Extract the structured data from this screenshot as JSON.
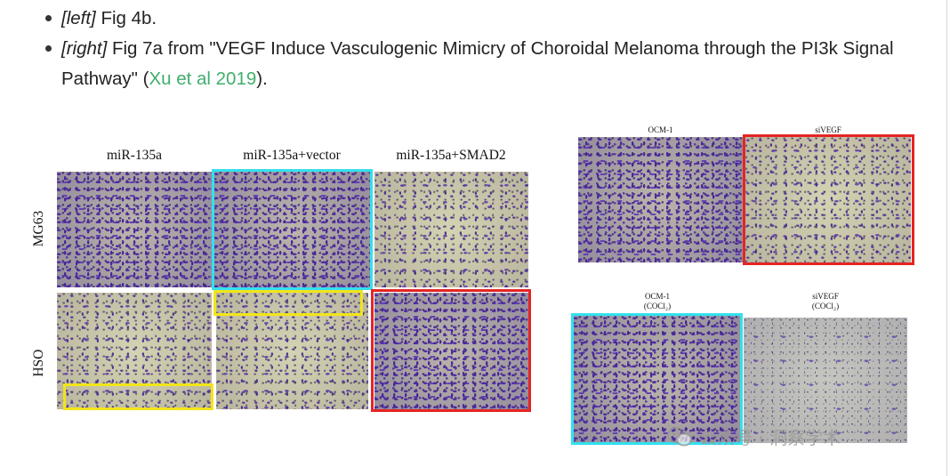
{
  "bullets": [
    {
      "tag": "[left]",
      "text": " Fig 4b."
    },
    {
      "tag": "[right]",
      "text_before": " Fig 7a from \"VEGF Induce Vasculogenic Mimicry of Choroidal Melanoma through the PI3k Signal Pathway\" (",
      "link": "Xu et al 2019",
      "text_after": ")."
    }
  ],
  "left_figure": {
    "columns": [
      "miR-135a",
      "miR-135a+vector",
      "miR-135a+SMAD2"
    ],
    "rows": [
      "MG63",
      "HSO"
    ]
  },
  "right_figure": {
    "top_labels": [
      "OCM-1",
      "siVEGF"
    ],
    "bottom_labels": [
      {
        "line1": "OCM-1",
        "line2": "(COCl₂)"
      },
      {
        "line1": "siVEGF",
        "line2": "(COCl₂)"
      }
    ]
  },
  "watermark": {
    "text": "公众号 · 洞察学术"
  },
  "colors": {
    "link": "#3fae6b",
    "cyan_box": "#33e0ef",
    "yellow_box": "#f2e51a",
    "red_box": "#e52424"
  }
}
